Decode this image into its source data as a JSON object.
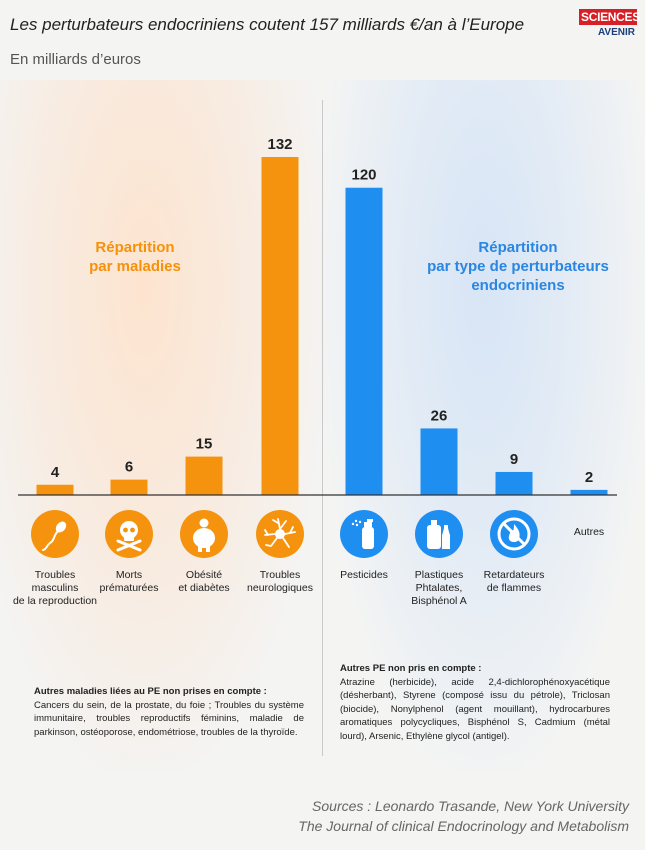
{
  "title": "Les perturbateurs endocriniens coutent 157 milliards €/an à l’Europe",
  "subtitle": "En milliards d’euros",
  "logo": {
    "line1": "SCIENCES",
    "line2": "AVENIR"
  },
  "group_left_label": [
    "Répartition",
    "par maladies"
  ],
  "group_right_label": [
    "Répartition",
    "par type de perturbateurs",
    "endocriniens"
  ],
  "colors": {
    "orange": "#f5930f",
    "blue": "#1f8ef1",
    "axis": "#333333"
  },
  "chart_data": {
    "type": "bar",
    "ylim": [
      0,
      140
    ],
    "groups": [
      {
        "name": "Répartition par maladies",
        "color": "#f5930f",
        "categories": [
          "Troubles masculins de la reproduction",
          "Morts prématurées",
          "Obésité et diabètes",
          "Troubles neurologiques"
        ],
        "values": [
          4,
          6,
          15,
          132
        ]
      },
      {
        "name": "Répartition par type de perturbateurs endocriniens",
        "color": "#1f8ef1",
        "categories": [
          "Pesticides",
          "Plastiques Phtalates, Bisphénol A",
          "Retardateurs de flammes",
          "Autres"
        ],
        "values": [
          120,
          26,
          9,
          2
        ]
      }
    ]
  },
  "categories_display": [
    {
      "lines": [
        "Troubles",
        "masculins",
        "de la reproduction"
      ],
      "icon": "sperm-icon"
    },
    {
      "lines": [
        "Morts",
        "prématurées"
      ],
      "icon": "skull-crossbones-icon"
    },
    {
      "lines": [
        "Obésité",
        "et diabètes"
      ],
      "icon": "obesity-icon"
    },
    {
      "lines": [
        "Troubles",
        "neurologiques"
      ],
      "icon": "neuron-icon"
    },
    {
      "lines": [
        "Pesticides"
      ],
      "icon": "spray-bottle-icon"
    },
    {
      "lines": [
        "Plastiques",
        "Phtalates,",
        "Bisphénol A"
      ],
      "icon": "plastic-bottles-icon"
    },
    {
      "lines": [
        "Retardateurs",
        "de flammes"
      ],
      "icon": "no-fire-icon"
    },
    {
      "lines": [
        "Autres"
      ],
      "icon": null
    }
  ],
  "note_left": {
    "title": "Autres maladies liées au PE non prises en compte :",
    "text": "Cancers du sein, de la prostate, du foie ; Troubles du système immunitaire, troubles reproductifs féminins, maladie de parkinson, ostéoporose, endométriose, troubles de la thyroïde."
  },
  "note_right": {
    "title": "Autres PE non pris en compte :",
    "text": "Atrazine (herbicide), acide 2,4-dichlorophénoxyacétique (désherbant), Styrene (composé issu du pétrole), Triclosan (biocide), Nonylphenol (agent mouillant), hydrocarbures aromatiques polycycliques, Bisphénol S, Cadmium (métal lourd), Arsenic, Ethylène glycol (antigel)."
  },
  "sources": [
    "Sources : Leonardo Trasande, New York University",
    "The Journal of clinical Endocrinology and Metabolism"
  ]
}
